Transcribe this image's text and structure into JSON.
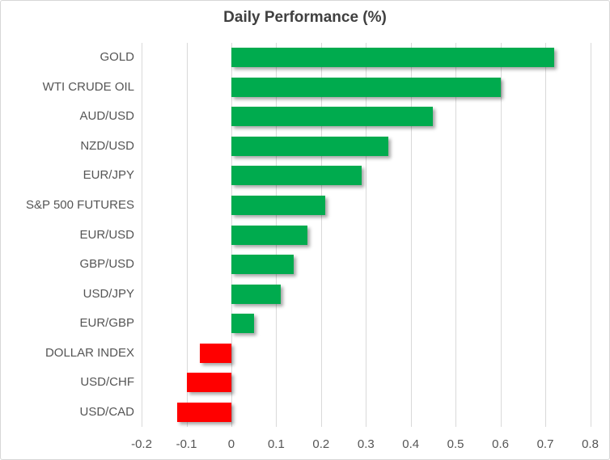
{
  "chart_data": {
    "type": "bar",
    "orientation": "horizontal",
    "title": "Daily Performance (%)",
    "categories": [
      "GOLD",
      "WTI CRUDE OIL",
      "AUD/USD",
      "NZD/USD",
      "EUR/JPY",
      "S&P 500 FUTURES",
      "EUR/USD",
      "GBP/USD",
      "USD/JPY",
      "EUR/GBP",
      "DOLLAR INDEX",
      "USD/CHF",
      "USD/CAD"
    ],
    "values": [
      0.72,
      0.6,
      0.45,
      0.35,
      0.29,
      0.21,
      0.17,
      0.14,
      0.11,
      0.05,
      -0.07,
      -0.1,
      -0.12
    ],
    "xlabel": "",
    "ylabel": "",
    "xlim": [
      -0.2,
      0.8
    ],
    "x_ticks": [
      {
        "value": -0.2,
        "label": "-0.2"
      },
      {
        "value": -0.1,
        "label": "-0.1"
      },
      {
        "value": 0,
        "label": "0"
      },
      {
        "value": 0.1,
        "label": "0.1"
      },
      {
        "value": 0.2,
        "label": "0.2"
      },
      {
        "value": 0.3,
        "label": "0.3"
      },
      {
        "value": 0.4,
        "label": "0.4"
      },
      {
        "value": 0.5,
        "label": "0.5"
      },
      {
        "value": 0.6,
        "label": "0.6"
      },
      {
        "value": 0.7,
        "label": "0.7"
      },
      {
        "value": 0.8,
        "label": "0.8"
      }
    ],
    "grid": true,
    "legend": "none",
    "colors": {
      "positive_bar": "#00AB4E",
      "negative_bar": "#FF0000",
      "gridline": "#D9D9D9",
      "title_text": "#404040",
      "axis_text": "#555555",
      "chart_border": "#D7D7D7",
      "background": "#FFFFFF"
    }
  }
}
